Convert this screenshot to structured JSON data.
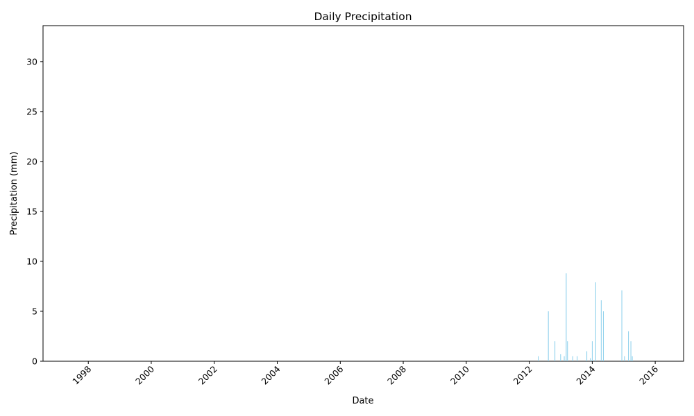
{
  "chart_data": {
    "type": "bar",
    "title": "Daily Precipitation",
    "xlabel": "Date",
    "ylabel": "Precipitation (mm)",
    "xlim": [
      "1996-07-25",
      "2016-11-25"
    ],
    "ylim": [
      0,
      33.6
    ],
    "grid": false,
    "bar_color": "#87ceeb",
    "x_ticks": [
      "1998",
      "2000",
      "2002",
      "2004",
      "2006",
      "2008",
      "2010",
      "2012",
      "2014",
      "2016"
    ],
    "y_ticks": [
      "0",
      "5",
      "10",
      "15",
      "20",
      "25",
      "30"
    ],
    "x": [
      "2012-04-15",
      "2012-08-10",
      "2012-10-25",
      "2012-12-30",
      "2013-02-10",
      "2013-03-05",
      "2013-03-20",
      "2013-05-20",
      "2013-07-10",
      "2013-10-30",
      "2013-12-10",
      "2014-01-01",
      "2014-02-10",
      "2014-04-15",
      "2014-05-10",
      "2014-12-10",
      "2015-01-10",
      "2015-02-25",
      "2015-03-25",
      "2015-04-10"
    ],
    "values": [
      0.5,
      5.0,
      2.0,
      0.7,
      0.5,
      8.8,
      2.0,
      0.5,
      0.5,
      1.0,
      0.3,
      2.0,
      7.9,
      6.1,
      5.0,
      7.1,
      0.5,
      3.0,
      2.0,
      0.5
    ]
  }
}
